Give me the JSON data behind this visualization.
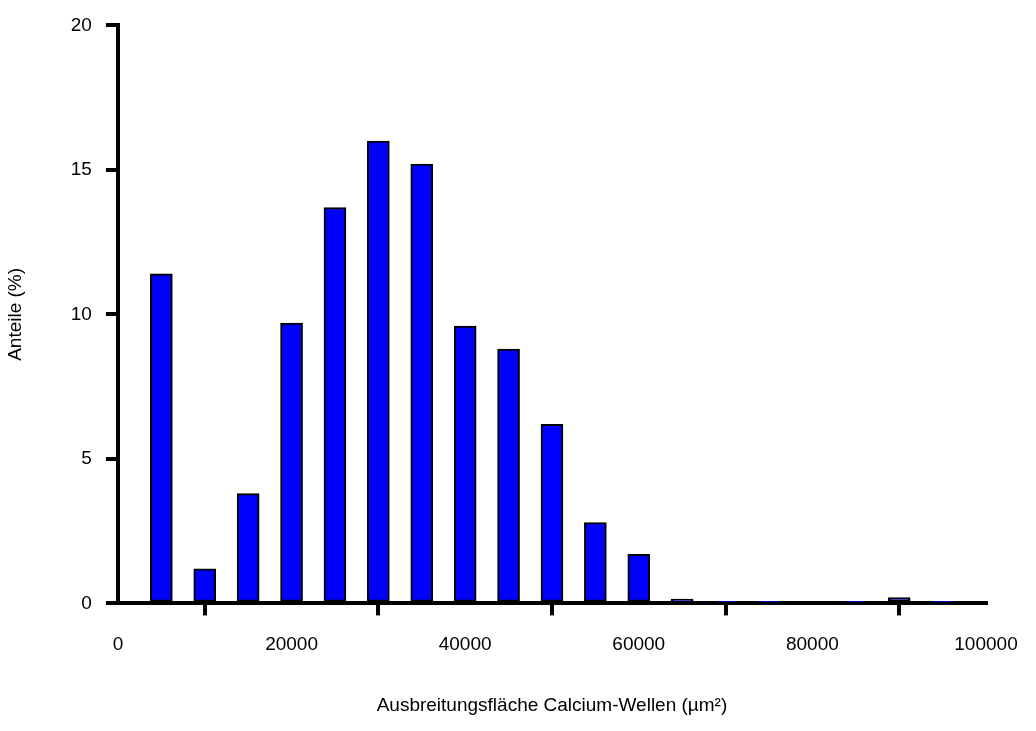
{
  "chart_data": {
    "type": "bar",
    "xlabel": "Ausbreitungsfläche Calcium-Wellen (µm²)",
    "ylabel": "Anteile (%)",
    "x": [
      5000,
      10000,
      15000,
      20000,
      25000,
      30000,
      35000,
      40000,
      45000,
      50000,
      55000,
      60000,
      65000,
      70000,
      75000,
      80000,
      85000,
      90000,
      95000
    ],
    "values": [
      11.4,
      1.2,
      3.8,
      9.7,
      13.7,
      16.0,
      15.2,
      9.6,
      8.8,
      6.2,
      2.8,
      1.7,
      0.15,
      0.05,
      0.05,
      0,
      0.05,
      0.2,
      0.05
    ],
    "color": "#0000ff",
    "xlim": [
      0,
      100000
    ],
    "xticks": [
      0,
      20000,
      40000,
      60000,
      80000,
      100000
    ],
    "ylim": [
      0,
      20
    ],
    "yticks": [
      0,
      5,
      10,
      15,
      20
    ],
    "grid": false,
    "legend": false
  }
}
